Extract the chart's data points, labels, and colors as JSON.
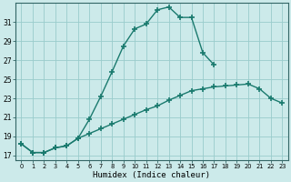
{
  "xlabel": "Humidex (Indice chaleur)",
  "background_color": "#cceaea",
  "grid_color": "#99cccc",
  "line_color": "#1a7a6e",
  "x_values": [
    0,
    1,
    2,
    3,
    4,
    5,
    6,
    7,
    8,
    9,
    10,
    11,
    12,
    13,
    14,
    15,
    16,
    17,
    18,
    19,
    20,
    21,
    22,
    23
  ],
  "line1_y": [
    18.2,
    17.3,
    17.3,
    17.8,
    18.0,
    18.8,
    20.8,
    23.2,
    25.8,
    28.5,
    30.3,
    30.8,
    32.3,
    32.6,
    31.5,
    31.5,
    27.8,
    26.5,
    null,
    null,
    null,
    null,
    null,
    null
  ],
  "line2_y": [
    18.2,
    17.3,
    17.3,
    17.8,
    18.0,
    18.8,
    19.3,
    19.8,
    20.3,
    20.8,
    21.3,
    21.8,
    22.2,
    22.8,
    23.3,
    23.8,
    24.0,
    24.2,
    24.3,
    24.4,
    24.5,
    24.0,
    23.0,
    22.5
  ],
  "line3_y": [
    null,
    null,
    null,
    null,
    null,
    null,
    null,
    null,
    null,
    null,
    null,
    null,
    null,
    null,
    null,
    null,
    24.0,
    24.4,
    null,
    24.0,
    24.5,
    24.0,
    23.0,
    22.5
  ],
  "yticks": [
    17,
    19,
    21,
    23,
    25,
    27,
    29,
    31
  ],
  "xticks": [
    0,
    1,
    2,
    3,
    4,
    5,
    6,
    7,
    8,
    9,
    10,
    11,
    12,
    13,
    14,
    15,
    16,
    17,
    18,
    19,
    20,
    21,
    22,
    23
  ],
  "ylim": [
    16.5,
    33.0
  ],
  "xlim": [
    -0.5,
    23.5
  ]
}
